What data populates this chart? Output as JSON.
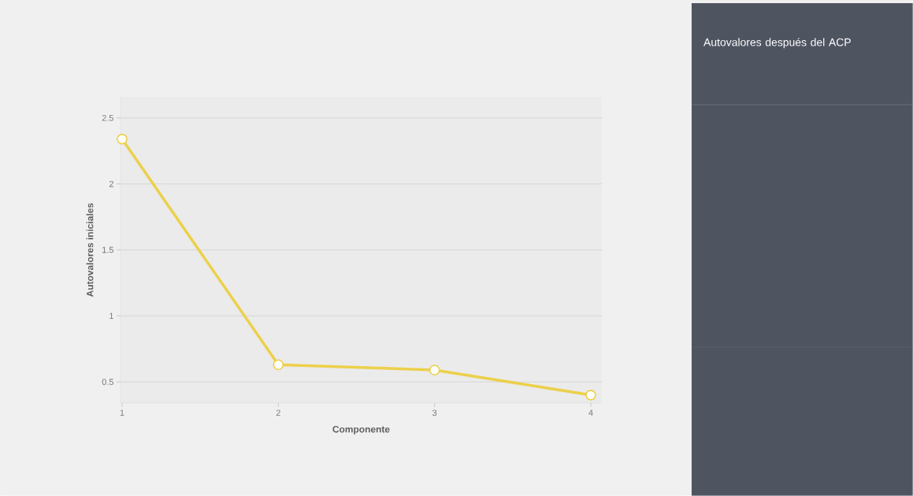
{
  "chart_data": {
    "type": "line",
    "title": "Autovalores después del ACP",
    "xlabel": "Componente",
    "ylabel": "Autovalores iniciales",
    "x": [
      1,
      2,
      3,
      4
    ],
    "series": [
      {
        "color": "#ecd04a",
        "values": [
          2.34,
          0.63,
          0.59,
          0.4
        ]
      }
    ],
    "xlim": [
      0.99,
      4.07
    ],
    "ylim": [
      0.34,
      2.66
    ],
    "xticks": [
      1,
      2,
      3,
      4
    ],
    "yticks": [
      0.5,
      1,
      1.5,
      2,
      2.5
    ],
    "grid": "y",
    "marker": "circle",
    "line_style": "solid"
  }
}
